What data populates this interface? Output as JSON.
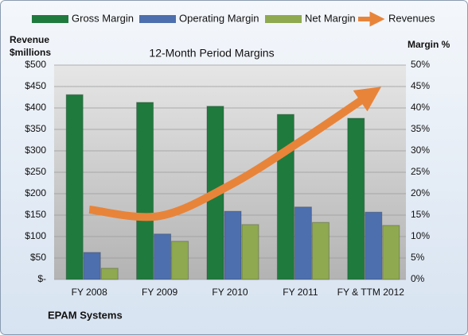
{
  "chart_data": {
    "type": "bar",
    "title": "12-Month Period Margins",
    "y_label": [
      "Revenue",
      "$millions"
    ],
    "y2_label": "Margin %",
    "footer": "EPAM Systems",
    "categories": [
      "FY 2008",
      "FY 2009",
      "FY 2010",
      "FY 2011",
      "FY & TTM 2012"
    ],
    "series": [
      {
        "name": "Gross Margin",
        "color": "#1f7a3d",
        "axis": "y2",
        "values": [
          43.1,
          41.3,
          40.4,
          38.5,
          37.6
        ]
      },
      {
        "name": "Operating Margin",
        "color": "#4d6fae",
        "axis": "y2",
        "values": [
          6.3,
          10.6,
          15.9,
          16.9,
          15.7
        ]
      },
      {
        "name": "Net Margin",
        "color": "#8ea94f",
        "axis": "y2",
        "values": [
          2.6,
          8.9,
          12.8,
          13.3,
          12.6
        ]
      },
      {
        "name": "Revenues",
        "color": "#e8843a",
        "axis": "y",
        "type": "line",
        "values": [
          163,
          148,
          220,
          322,
          433
        ]
      }
    ],
    "ylim": [
      0,
      500
    ],
    "yticks": [
      {
        "value": 0,
        "label": "$-"
      },
      {
        "value": 50,
        "label": "$50"
      },
      {
        "value": 100,
        "label": "$100"
      },
      {
        "value": 150,
        "label": "$150"
      },
      {
        "value": 200,
        "label": "$200"
      },
      {
        "value": 250,
        "label": "$250"
      },
      {
        "value": 300,
        "label": "$300"
      },
      {
        "value": 350,
        "label": "$350"
      },
      {
        "value": 400,
        "label": "$400"
      },
      {
        "value": 450,
        "label": "$450"
      },
      {
        "value": 500,
        "label": "$500"
      }
    ],
    "y2lim": [
      0,
      50
    ],
    "y2ticks": [
      {
        "value": 0,
        "label": "0%"
      },
      {
        "value": 5,
        "label": "5%"
      },
      {
        "value": 10,
        "label": "10%"
      },
      {
        "value": 15,
        "label": "15%"
      },
      {
        "value": 20,
        "label": "20%"
      },
      {
        "value": 25,
        "label": "25%"
      },
      {
        "value": 30,
        "label": "30%"
      },
      {
        "value": 35,
        "label": "35%"
      },
      {
        "value": 40,
        "label": "40%"
      },
      {
        "value": 45,
        "label": "45%"
      },
      {
        "value": 50,
        "label": "50%"
      }
    ],
    "grid": true,
    "legend": "top"
  }
}
